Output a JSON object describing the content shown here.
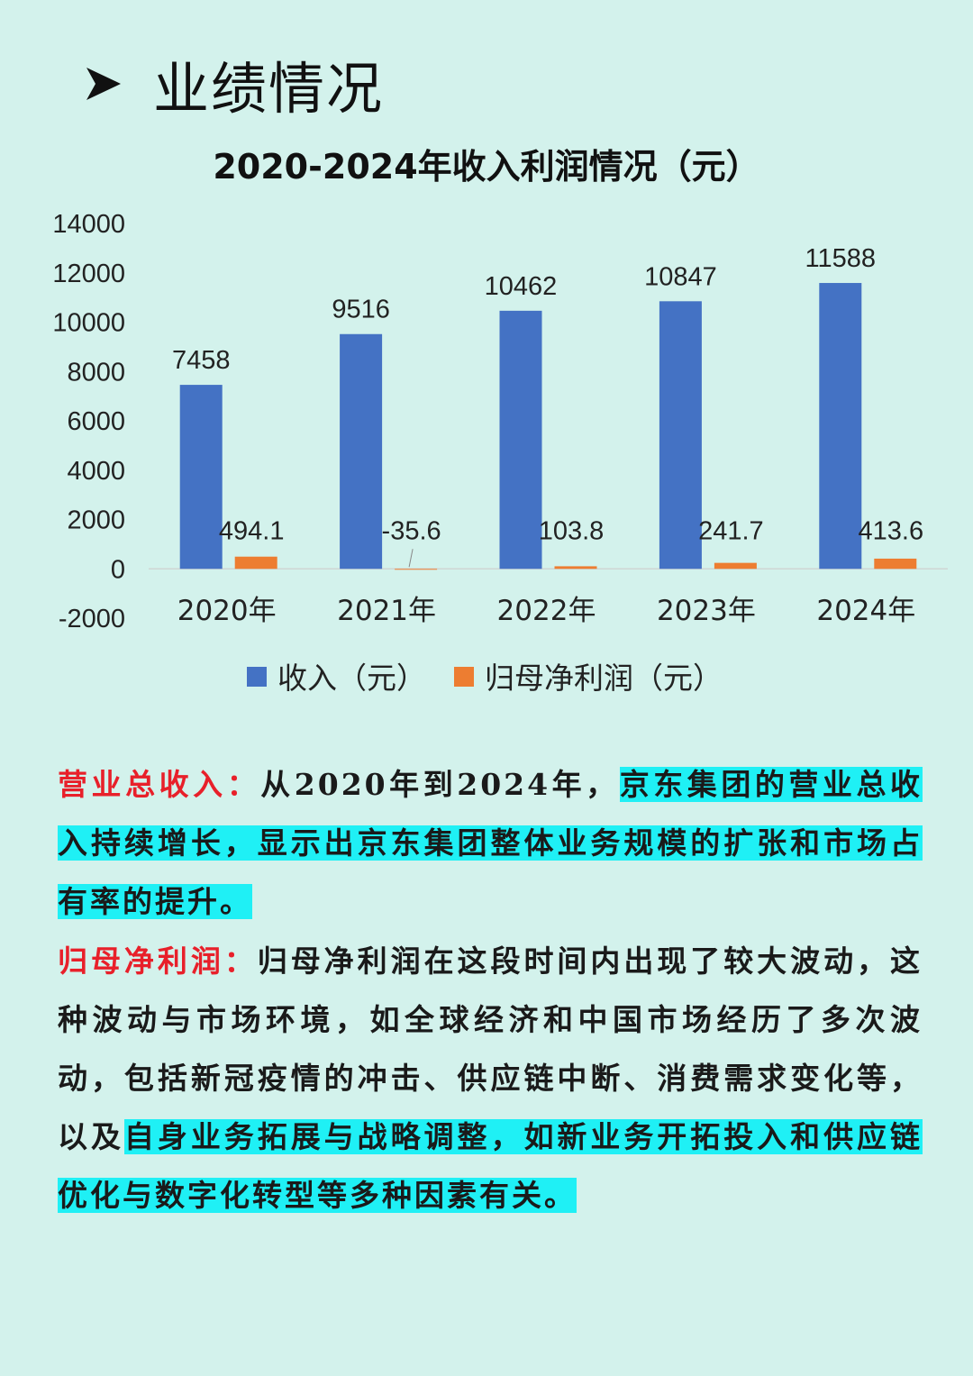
{
  "header": {
    "title": "业绩情况",
    "icon": "arrow-icon"
  },
  "chart_data": {
    "type": "bar",
    "title": "2020-2024年收入利润情况（元）",
    "categories": [
      "2020年",
      "2021年",
      "2022年",
      "2023年",
      "2024年"
    ],
    "series": [
      {
        "name": "收入（元）",
        "values": [
          7458,
          9516,
          10462,
          10847,
          11588
        ],
        "labels": [
          "7458",
          "9516",
          "10462",
          "10847",
          "11588"
        ],
        "color": "#4472c4"
      },
      {
        "name": "归母净利润（元）",
        "values": [
          494.1,
          -35.6,
          103.8,
          241.7,
          413.6
        ],
        "labels": [
          "494.1",
          "-35.6",
          "103.8",
          "241.7",
          "413.6"
        ],
        "color": "#ed7d31"
      }
    ],
    "yticks": [
      "14000",
      "12000",
      "10000",
      "8000",
      "6000",
      "4000",
      "2000",
      "0",
      "-2000"
    ],
    "ylim": [
      -2000,
      14000
    ],
    "legend": "bottom",
    "grid": false
  },
  "paragraphs": {
    "p1": {
      "label": "营业总收入：",
      "text_plain": "从2020年到2024年，",
      "text_hl": "京东集团的营业总收入持续增长，显示出京东集团整体业务规模的扩张和市场占有率的提升。"
    },
    "p2": {
      "label": "归母净利润：",
      "text_plain": "归母净利润在这段时间内出现了较大波动，这种波动与市场环境，如全球经济和中国市场经历了多次波动，包括新冠疫情的冲击、供应链中断、消费需求变化等，以及",
      "text_hl": "自身业务拓展与战略调整，如新业务开拓投入和供应链优化与数字化转型等多种因素有关。"
    }
  }
}
